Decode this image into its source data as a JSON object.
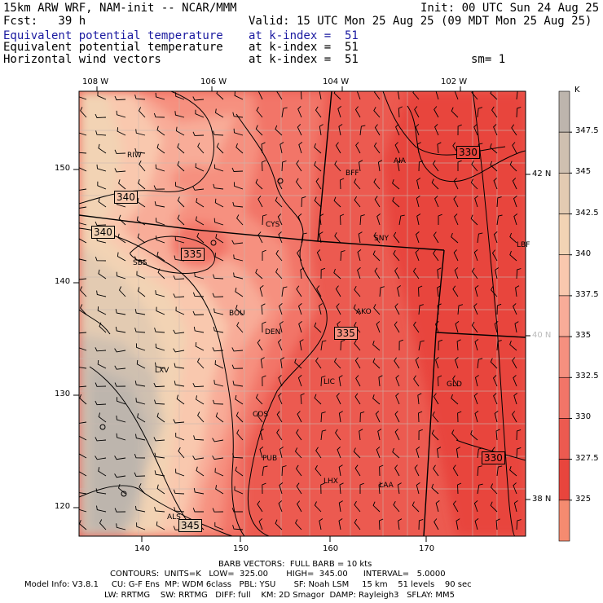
{
  "header": {
    "model": "15km ARW WRF, NAM-init -- NCAR/MMM",
    "init": "Init: 00 UTC Sun 24 Aug 25",
    "fcst": "Fcst:   39 h",
    "valid": "Valid: 15 UTC Mon 25 Aug 25 (09 MDT Mon 25 Aug 25)",
    "fields": [
      {
        "name": "Equivalent potential temperature",
        "level": "at k-index =  51"
      },
      {
        "name": "Equivalent potential temperature",
        "level": "at k-index =  51"
      },
      {
        "name": "Horizontal wind vectors",
        "level": "at k-index =  51"
      }
    ],
    "smoothing": "sm= 1"
  },
  "map": {
    "top_lon_labels": [
      "108 W",
      "106 W",
      "104 W",
      "102 W"
    ],
    "right_lat_labels": [
      "42 N",
      "40 N",
      "38 N"
    ],
    "y_ticks": [
      "150",
      "140",
      "130",
      "120"
    ],
    "x_ticks": [
      "140",
      "150",
      "160",
      "170"
    ],
    "contour_labels": [
      "340",
      "340",
      "335",
      "335",
      "330",
      "330",
      "345"
    ],
    "stations": [
      "RIW",
      "BFF",
      "AIA",
      "CYS",
      "SNY",
      "LBF",
      "SBS",
      "BOU",
      "AKO",
      "DEN",
      "LXV",
      "LIC",
      "GLD",
      "COS",
      "PUB",
      "LHX",
      "LAA",
      "ALS"
    ]
  },
  "colorbar": {
    "unit": "K",
    "labels": [
      "347.5",
      "345",
      "342.5",
      "340",
      "337.5",
      "335",
      "332.5",
      "330",
      "327.5",
      "325"
    ],
    "colors": [
      "#bdb5ad",
      "#cfc0b0",
      "#e3cbb2",
      "#f2d3b4",
      "#f9c8ae",
      "#f8ac98",
      "#f6907f",
      "#f27568",
      "#ec5a50",
      "#e8453d",
      "#f58b70"
    ]
  },
  "footer": {
    "barbs": "BARB VECTORS:  FULL BARB = 10 kts",
    "contours": "CONTOURS:  UNITS=K   LOW=  325.00       HIGH=  345.00      INTERVAL=   5.0000",
    "model_info": "Model Info: V3.8.1     CU: G-F Ens  MP: WDM 6class   PBL: YSU       SF: Noah LSM     15 km    51 levels    90 sec",
    "physics": "LW: RRTMG    SW: RRTMG   DIFF: full    KM: 2D Smagor  DAMP: Rayleigh3   SFLAY: MM5"
  }
}
